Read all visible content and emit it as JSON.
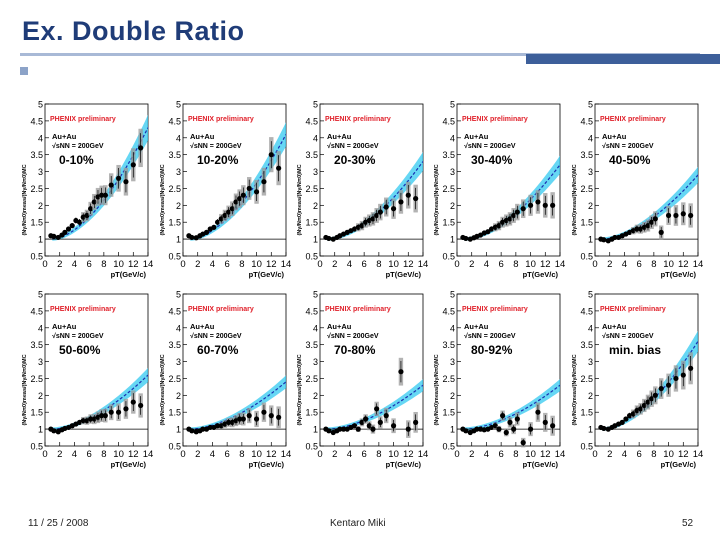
{
  "slide": {
    "title": "Ex. Double Ratio",
    "footer_date": "11 / 25 / 2008",
    "footer_author": "Kentaro Miki",
    "footer_page": "52"
  },
  "colors": {
    "title": "#1f3c78",
    "band": "#33c9f0",
    "curve": "#1a2fb0",
    "marker": "#000000",
    "syst_box": "#9a9a9a",
    "phenix_label": "#e0202a"
  },
  "chart_data": {
    "type": "scatter",
    "shared": {
      "xlabel": "pT(GeV/c)",
      "ylabel": "(Nγ/Nπ0)meas/(Nγ/Nπ0)MC",
      "xlim": [
        0,
        14
      ],
      "ylim": [
        0.5,
        5
      ],
      "xticks": [
        "0",
        "2",
        "4",
        "6",
        "8",
        "10",
        "12",
        "14"
      ],
      "yticks": [
        "0.5",
        "1",
        "1.5",
        "2",
        "2.5",
        "3",
        "3.5",
        "4",
        "4.5",
        "5"
      ],
      "reference_line_y": 1,
      "experiment_label": "PHENIX preliminary",
      "system_label": "Au+Au",
      "energy_label": "√sNN = 200GeV"
    },
    "panels": [
      {
        "centrality": "0-10%",
        "pt": [
          0.8,
          1.2,
          1.8,
          2.3,
          2.7,
          3.2,
          3.7,
          4.2,
          4.7,
          5.2,
          5.7,
          6.2,
          6.7,
          7.2,
          7.7,
          8.2,
          9,
          10,
          11,
          12,
          13
        ],
        "ratio": [
          1.1,
          1.08,
          1.05,
          1.12,
          1.2,
          1.3,
          1.4,
          1.55,
          1.5,
          1.65,
          1.7,
          1.9,
          2.1,
          2.25,
          2.3,
          2.3,
          2.6,
          2.8,
          2.7,
          3.2,
          3.7
        ],
        "band_top": 4.3
      },
      {
        "centrality": "10-20%",
        "pt": [
          0.8,
          1.2,
          1.8,
          2.3,
          2.7,
          3.2,
          3.7,
          4.2,
          4.7,
          5.2,
          5.7,
          6.2,
          6.7,
          7.2,
          7.7,
          8.2,
          9,
          10,
          11,
          12,
          13
        ],
        "ratio": [
          1.1,
          1.05,
          1.04,
          1.1,
          1.15,
          1.2,
          1.3,
          1.35,
          1.5,
          1.6,
          1.7,
          1.8,
          1.9,
          2.1,
          2.2,
          2.3,
          2.5,
          2.4,
          2.7,
          3.5,
          3.1
        ],
        "band_top": 4.1
      },
      {
        "centrality": "20-30%",
        "pt": [
          0.8,
          1.2,
          1.8,
          2.3,
          2.7,
          3.2,
          3.7,
          4.2,
          4.7,
          5.2,
          5.7,
          6.2,
          6.7,
          7.2,
          7.7,
          8.2,
          9,
          10,
          11,
          12,
          13
        ],
        "ratio": [
          1.05,
          1.02,
          1.0,
          1.05,
          1.1,
          1.15,
          1.2,
          1.25,
          1.3,
          1.35,
          1.4,
          1.5,
          1.55,
          1.6,
          1.7,
          1.8,
          1.95,
          1.9,
          2.1,
          2.3,
          2.2
        ],
        "band_top": 3.3
      },
      {
        "centrality": "30-40%",
        "pt": [
          0.8,
          1.2,
          1.8,
          2.3,
          2.7,
          3.2,
          3.7,
          4.2,
          4.7,
          5.2,
          5.7,
          6.2,
          6.7,
          7.2,
          7.7,
          8.2,
          9,
          10,
          11,
          12,
          13
        ],
        "ratio": [
          1.05,
          1.02,
          1.0,
          1.04,
          1.08,
          1.12,
          1.18,
          1.22,
          1.3,
          1.35,
          1.4,
          1.5,
          1.55,
          1.6,
          1.7,
          1.8,
          1.9,
          2.0,
          2.1,
          2.0,
          2.0
        ],
        "band_top": 3.2
      },
      {
        "centrality": "40-50%",
        "pt": [
          0.8,
          1.2,
          1.8,
          2.3,
          2.7,
          3.2,
          3.7,
          4.2,
          4.7,
          5.2,
          5.7,
          6.2,
          6.7,
          7.2,
          7.7,
          8.2,
          9,
          10,
          11,
          12,
          13
        ],
        "ratio": [
          1.0,
          0.98,
          0.95,
          1.0,
          1.05,
          1.05,
          1.1,
          1.15,
          1.2,
          1.25,
          1.3,
          1.3,
          1.35,
          1.4,
          1.5,
          1.6,
          1.2,
          1.7,
          1.7,
          1.75,
          1.7
        ],
        "band_top": 2.9
      },
      {
        "centrality": "50-60%",
        "pt": [
          0.8,
          1.2,
          1.8,
          2.3,
          2.7,
          3.2,
          3.7,
          4.2,
          4.7,
          5.2,
          5.7,
          6.2,
          6.7,
          7.2,
          7.7,
          8.2,
          9,
          10,
          11,
          12,
          13
        ],
        "ratio": [
          1.0,
          0.95,
          0.92,
          0.98,
          1.02,
          1.05,
          1.1,
          1.15,
          1.2,
          1.25,
          1.25,
          1.3,
          1.3,
          1.35,
          1.4,
          1.4,
          1.5,
          1.5,
          1.6,
          1.8,
          1.7
        ],
        "band_top": 2.6
      },
      {
        "centrality": "60-70%",
        "pt": [
          0.8,
          1.2,
          1.8,
          2.3,
          2.7,
          3.2,
          3.7,
          4.2,
          4.7,
          5.2,
          5.7,
          6.2,
          6.7,
          7.2,
          7.7,
          8.2,
          9,
          10,
          11,
          12,
          13
        ],
        "ratio": [
          1.0,
          0.95,
          0.92,
          0.95,
          1.0,
          1.0,
          1.05,
          1.05,
          1.1,
          1.1,
          1.15,
          1.2,
          1.2,
          1.25,
          1.3,
          1.3,
          1.4,
          1.3,
          1.5,
          1.4,
          1.35
        ],
        "band_top": 2.4
      },
      {
        "centrality": "70-80%",
        "pt": [
          0.8,
          1.2,
          1.8,
          2.3,
          2.7,
          3.2,
          3.7,
          4.2,
          4.7,
          5.2,
          5.7,
          6.2,
          6.7,
          7.2,
          7.7,
          8.2,
          9,
          10,
          11,
          12,
          13
        ],
        "ratio": [
          1.0,
          0.95,
          0.9,
          0.95,
          1.0,
          1.0,
          1.0,
          1.05,
          1.1,
          1.0,
          1.2,
          1.3,
          1.1,
          1.0,
          1.6,
          1.2,
          1.4,
          1.1,
          2.7,
          1.0,
          1.2
        ],
        "band_top": 2.3
      },
      {
        "centrality": "80-92%",
        "pt": [
          0.8,
          1.2,
          1.8,
          2.3,
          2.7,
          3.2,
          3.7,
          4.2,
          4.7,
          5.2,
          5.7,
          6.2,
          6.7,
          7.2,
          7.7,
          8.2,
          9,
          10,
          11,
          12,
          13
        ],
        "ratio": [
          1.0,
          0.95,
          0.9,
          0.95,
          1.0,
          1.0,
          0.98,
          1.0,
          1.05,
          1.1,
          1.0,
          1.4,
          0.9,
          1.2,
          1.0,
          1.3,
          0.6,
          1.0,
          1.5,
          1.2,
          1.1
        ],
        "band_top": 2.3
      },
      {
        "centrality": "min. bias",
        "pt": [
          0.8,
          1.2,
          1.8,
          2.3,
          2.7,
          3.2,
          3.7,
          4.2,
          4.7,
          5.2,
          5.7,
          6.2,
          6.7,
          7.2,
          7.7,
          8.2,
          9,
          10,
          11,
          12,
          13
        ],
        "ratio": [
          1.05,
          1.02,
          1.0,
          1.05,
          1.1,
          1.15,
          1.2,
          1.3,
          1.4,
          1.45,
          1.55,
          1.6,
          1.7,
          1.8,
          1.9,
          2.0,
          2.2,
          2.3,
          2.5,
          2.6,
          2.8
        ],
        "band_top": 3.6
      }
    ]
  }
}
